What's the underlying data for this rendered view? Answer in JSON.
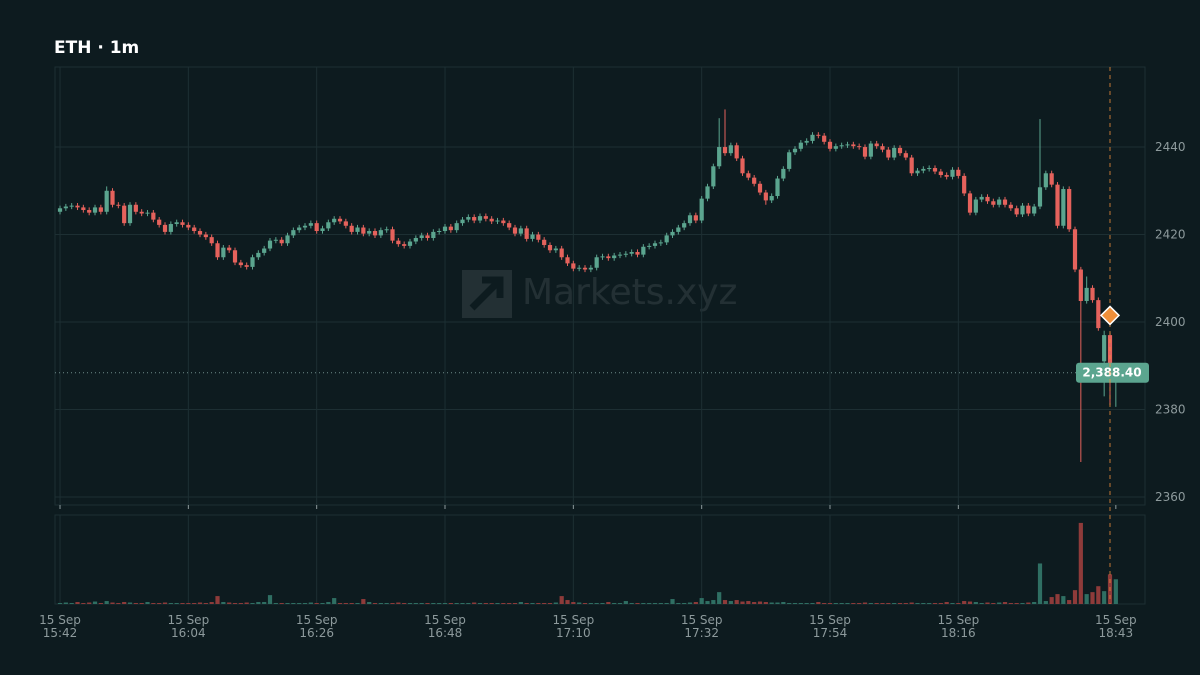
{
  "chart_data": {
    "type": "candlestick",
    "title": "ETH · 1m",
    "watermark": "Markets.xyz",
    "date_label": "15 Sep",
    "xlim": [
      -0.86,
      186
    ],
    "xticks": [
      {
        "value": 0,
        "label": "15:42"
      },
      {
        "value": 22,
        "label": "16:04"
      },
      {
        "value": 44,
        "label": "16:26"
      },
      {
        "value": 66,
        "label": "16:48"
      },
      {
        "value": 88,
        "label": "17:10"
      },
      {
        "value": 110,
        "label": "17:32"
      },
      {
        "value": 132,
        "label": "17:54"
      },
      {
        "value": 154,
        "label": "18:16"
      },
      {
        "value": 181,
        "label": "18:43"
      }
    ],
    "ylim": [
      2359.3,
      2458.3
    ],
    "yticks": [
      2360,
      2380,
      2400,
      2420,
      2440
    ],
    "volume_lim": [
      0,
      90
    ],
    "grid": true,
    "up_color": "#5ba58f",
    "down_color": "#e5625c",
    "up_volume_color": "#2f6f63",
    "down_volume_color": "#8e3b3a",
    "marker": {
      "x": 180,
      "y": 2401.5,
      "color": "#ef8f3a"
    },
    "last_price": {
      "value": 2388.4,
      "label": "2,388.40"
    },
    "open": [
      2425.2,
      2426.0,
      2426.4,
      2426.6,
      2426.2,
      2425.6,
      2425.0,
      2426.2,
      2425.2,
      2430.0,
      2426.8,
      2426.6,
      2422.6,
      2426.8,
      2425.2,
      2424.8,
      2425.0,
      2423.4,
      2422.2,
      2420.6,
      2422.4,
      2422.8,
      2422.2,
      2421.6,
      2420.8,
      2420.0,
      2419.4,
      2418.0,
      2414.8,
      2417.0,
      2416.4,
      2413.6,
      2413.0,
      2412.6,
      2414.8,
      2415.8,
      2416.8,
      2418.6,
      2418.8,
      2418.0,
      2419.8,
      2421.0,
      2421.6,
      2422.0,
      2422.6,
      2420.8,
      2421.4,
      2422.8,
      2423.6,
      2423.0,
      2422.0,
      2420.6,
      2421.6,
      2420.2,
      2420.8,
      2419.8,
      2421.0,
      2421.2,
      2418.6,
      2417.8,
      2417.4,
      2418.4,
      2419.2,
      2419.8,
      2419.2,
      2420.6,
      2420.8,
      2421.8,
      2421.0,
      2422.6,
      2423.4,
      2424.0,
      2423.2,
      2424.2,
      2423.6,
      2423.0,
      2423.2,
      2422.6,
      2421.6,
      2420.2,
      2421.4,
      2419.0,
      2420.0,
      2418.8,
      2417.6,
      2416.4,
      2416.8,
      2414.8,
      2413.4,
      2412.2,
      2412.4,
      2412.0,
      2412.4,
      2414.8,
      2415.0,
      2414.6,
      2415.2,
      2415.4,
      2415.6,
      2416.0,
      2415.4,
      2417.2,
      2417.4,
      2418.0,
      2418.2,
      2419.8,
      2420.6,
      2421.6,
      2422.6,
      2424.4,
      2423.2,
      2428.2,
      2431.0,
      2435.6,
      2440.0,
      2438.6,
      2440.4,
      2437.4,
      2434.0,
      2433.0,
      2431.6,
      2429.6,
      2427.8,
      2428.8,
      2432.8,
      2435.0,
      2438.8,
      2439.6,
      2441.0,
      2441.4,
      2442.8,
      2442.6,
      2441.2,
      2439.6,
      2440.2,
      2440.4,
      2440.6,
      2440.2,
      2440.0,
      2437.8,
      2440.8,
      2440.2,
      2439.4,
      2437.6,
      2439.8,
      2438.6,
      2437.6,
      2434.0,
      2434.6,
      2435.0,
      2435.2,
      2434.4,
      2433.6,
      2433.2,
      2434.8,
      2433.4,
      2429.4,
      2425.0,
      2428.0,
      2428.6,
      2427.6,
      2426.8,
      2428.0,
      2426.8,
      2426.0,
      2424.6,
      2426.6,
      2424.8,
      2426.4,
      2430.8,
      2434.0,
      2431.4,
      2422.0,
      2430.4,
      2421.2,
      2412.0,
      2404.8,
      2407.8,
      2405.0,
      2391.0,
      2397.0,
      2386.6
    ],
    "high": [
      2426.6,
      2427.0,
      2427.2,
      2427.2,
      2426.8,
      2426.2,
      2426.8,
      2426.8,
      2431.0,
      2430.6,
      2427.4,
      2427.2,
      2427.4,
      2427.4,
      2425.8,
      2425.6,
      2425.6,
      2424.0,
      2422.8,
      2423.0,
      2423.4,
      2423.4,
      2422.8,
      2422.2,
      2421.4,
      2420.6,
      2420.0,
      2418.6,
      2417.6,
      2417.6,
      2417.0,
      2414.2,
      2413.6,
      2415.4,
      2416.4,
      2417.4,
      2419.2,
      2419.4,
      2419.4,
      2420.4,
      2421.6,
      2422.2,
      2422.6,
      2423.2,
      2423.2,
      2422.0,
      2423.4,
      2424.2,
      2424.2,
      2423.6,
      2422.6,
      2422.2,
      2422.2,
      2421.4,
      2421.4,
      2421.6,
      2421.8,
      2421.8,
      2419.2,
      2418.4,
      2419.0,
      2419.8,
      2420.4,
      2420.4,
      2421.2,
      2421.4,
      2422.4,
      2422.4,
      2423.2,
      2424.0,
      2424.6,
      2424.6,
      2424.8,
      2424.8,
      2424.2,
      2423.8,
      2423.8,
      2423.2,
      2422.2,
      2422.0,
      2422.0,
      2420.6,
      2420.6,
      2419.4,
      2418.2,
      2417.4,
      2417.4,
      2415.4,
      2414.0,
      2413.0,
      2413.0,
      2413.0,
      2415.4,
      2415.6,
      2415.6,
      2415.8,
      2416.0,
      2416.2,
      2416.6,
      2416.6,
      2417.8,
      2418.0,
      2418.6,
      2418.8,
      2420.4,
      2421.2,
      2422.2,
      2423.2,
      2425.0,
      2425.0,
      2428.8,
      2431.6,
      2436.2,
      2446.6,
      2448.6,
      2441.0,
      2441.0,
      2438.0,
      2434.6,
      2433.6,
      2432.2,
      2430.2,
      2429.4,
      2433.4,
      2435.6,
      2439.4,
      2440.2,
      2441.6,
      2442.0,
      2443.4,
      2443.4,
      2443.2,
      2441.8,
      2440.8,
      2441.0,
      2441.2,
      2441.2,
      2440.8,
      2440.6,
      2441.4,
      2441.4,
      2440.8,
      2440.0,
      2440.4,
      2440.4,
      2439.2,
      2438.2,
      2435.2,
      2435.6,
      2435.8,
      2435.8,
      2435.0,
      2434.2,
      2435.4,
      2435.4,
      2434.0,
      2430.0,
      2428.6,
      2429.2,
      2429.2,
      2428.2,
      2428.6,
      2428.6,
      2427.4,
      2426.6,
      2427.2,
      2427.2,
      2427.0,
      2446.4,
      2434.6,
      2434.6,
      2432.0,
      2431.0,
      2431.0,
      2421.8,
      2412.6,
      2410.4,
      2408.4,
      2405.6,
      2398.0,
      2397.6,
      2390.6
    ],
    "low": [
      2424.6,
      2425.4,
      2425.8,
      2425.6,
      2425.0,
      2424.4,
      2424.4,
      2424.6,
      2424.6,
      2426.2,
      2426.0,
      2422.0,
      2422.0,
      2424.6,
      2424.2,
      2424.2,
      2422.8,
      2421.6,
      2420.0,
      2420.0,
      2421.8,
      2421.6,
      2421.0,
      2420.2,
      2419.4,
      2418.8,
      2417.4,
      2414.2,
      2414.2,
      2415.8,
      2413.0,
      2412.4,
      2412.0,
      2412.0,
      2414.2,
      2415.2,
      2416.2,
      2418.0,
      2417.4,
      2417.4,
      2419.2,
      2420.4,
      2421.0,
      2421.4,
      2420.2,
      2420.2,
      2420.8,
      2422.2,
      2422.4,
      2421.4,
      2420.0,
      2420.0,
      2419.6,
      2419.6,
      2419.2,
      2419.2,
      2420.4,
      2418.0,
      2417.2,
      2416.8,
      2416.8,
      2417.8,
      2418.6,
      2418.6,
      2418.6,
      2420.0,
      2420.2,
      2420.4,
      2420.4,
      2422.0,
      2422.8,
      2422.6,
      2422.6,
      2423.0,
      2422.4,
      2422.4,
      2422.0,
      2421.0,
      2419.6,
      2419.6,
      2418.4,
      2418.4,
      2418.2,
      2417.0,
      2415.8,
      2415.8,
      2414.2,
      2412.8,
      2411.6,
      2411.6,
      2411.4,
      2411.4,
      2411.8,
      2414.2,
      2414.0,
      2414.0,
      2414.6,
      2414.8,
      2415.0,
      2414.8,
      2414.8,
      2416.6,
      2416.8,
      2417.4,
      2417.6,
      2419.2,
      2420.0,
      2421.0,
      2422.0,
      2422.6,
      2422.6,
      2427.6,
      2430.4,
      2435.0,
      2438.0,
      2438.0,
      2436.8,
      2433.4,
      2432.4,
      2431.0,
      2429.0,
      2426.8,
      2427.2,
      2428.2,
      2432.2,
      2434.4,
      2438.2,
      2439.0,
      2440.4,
      2440.8,
      2442.0,
      2440.6,
      2439.0,
      2439.0,
      2439.6,
      2439.8,
      2439.6,
      2439.4,
      2437.2,
      2437.2,
      2439.6,
      2438.8,
      2437.0,
      2437.0,
      2438.0,
      2437.0,
      2433.4,
      2433.4,
      2434.0,
      2434.4,
      2433.8,
      2433.0,
      2432.6,
      2432.6,
      2432.8,
      2428.8,
      2424.4,
      2424.4,
      2427.4,
      2427.0,
      2426.2,
      2426.2,
      2426.2,
      2425.4,
      2424.0,
      2424.0,
      2424.2,
      2424.2,
      2425.8,
      2430.2,
      2430.8,
      2421.4,
      2421.4,
      2420.6,
      2411.4,
      2368.0,
      2404.2,
      2404.4,
      2398.0,
      2383.0,
      2381.0,
      2380.6
    ],
    "close": [
      2426.0,
      2426.4,
      2426.6,
      2426.2,
      2425.6,
      2425.0,
      2426.2,
      2425.2,
      2430.0,
      2426.8,
      2426.6,
      2422.6,
      2426.8,
      2425.2,
      2424.8,
      2425.0,
      2423.4,
      2422.2,
      2420.6,
      2422.4,
      2422.8,
      2422.2,
      2421.6,
      2420.8,
      2420.0,
      2419.4,
      2418.0,
      2414.8,
      2417.0,
      2416.4,
      2413.6,
      2413.0,
      2412.6,
      2414.8,
      2415.8,
      2416.8,
      2418.6,
      2418.8,
      2418.0,
      2419.8,
      2421.0,
      2421.6,
      2422.0,
      2422.6,
      2420.8,
      2421.4,
      2422.8,
      2423.6,
      2423.0,
      2422.0,
      2420.6,
      2421.6,
      2420.2,
      2420.8,
      2419.8,
      2421.0,
      2421.2,
      2418.6,
      2417.8,
      2417.4,
      2418.4,
      2419.2,
      2419.8,
      2419.2,
      2420.6,
      2420.8,
      2421.8,
      2421.0,
      2422.6,
      2423.4,
      2424.0,
      2423.2,
      2424.2,
      2423.6,
      2423.0,
      2423.2,
      2422.6,
      2421.6,
      2420.2,
      2421.4,
      2419.0,
      2420.0,
      2418.8,
      2417.6,
      2416.4,
      2416.8,
      2414.8,
      2413.4,
      2412.2,
      2412.4,
      2412.0,
      2412.4,
      2414.8,
      2415.0,
      2414.6,
      2415.2,
      2415.4,
      2415.6,
      2416.0,
      2415.4,
      2417.2,
      2417.4,
      2418.0,
      2418.2,
      2419.8,
      2420.6,
      2421.6,
      2422.6,
      2424.4,
      2423.2,
      2428.2,
      2431.0,
      2435.6,
      2440.0,
      2438.6,
      2440.4,
      2437.4,
      2434.0,
      2433.0,
      2431.6,
      2429.6,
      2427.8,
      2428.8,
      2432.8,
      2435.0,
      2438.8,
      2439.6,
      2441.0,
      2441.4,
      2442.8,
      2442.6,
      2441.2,
      2439.6,
      2440.2,
      2440.4,
      2440.6,
      2440.2,
      2440.0,
      2437.8,
      2440.8,
      2440.2,
      2439.4,
      2437.6,
      2439.8,
      2438.6,
      2437.6,
      2434.0,
      2434.6,
      2435.0,
      2435.2,
      2434.4,
      2433.6,
      2433.2,
      2434.8,
      2433.4,
      2429.4,
      2425.0,
      2428.0,
      2428.6,
      2427.6,
      2426.8,
      2428.0,
      2426.8,
      2426.0,
      2424.6,
      2426.6,
      2424.8,
      2426.4,
      2430.8,
      2434.0,
      2431.4,
      2422.0,
      2430.4,
      2421.2,
      2412.0,
      2404.8,
      2407.8,
      2405.0,
      2398.6,
      2397.0,
      2388.4,
      2388.4
    ],
    "volume": [
      1,
      1.5,
      1,
      2,
      1,
      1.5,
      2.5,
      1,
      3,
      1.5,
      1,
      2,
      1.5,
      1,
      1,
      2,
      1,
      1,
      1.5,
      1,
      1,
      1,
      1,
      1,
      1.5,
      1,
      2,
      8,
      2,
      1.5,
      1,
      1,
      1.5,
      1,
      2,
      2,
      9,
      1,
      1,
      1,
      1,
      1,
      1,
      1.5,
      1,
      1,
      2,
      6,
      1,
      1,
      1,
      1,
      5,
      2,
      1,
      1,
      1,
      1,
      1.5,
      1,
      1,
      1,
      1,
      1,
      1,
      1,
      1,
      1,
      1,
      1,
      1,
      1.5,
      1,
      1,
      1,
      1,
      1,
      1,
      1,
      2,
      1,
      1,
      1,
      1,
      1,
      1.5,
      8,
      4,
      2,
      1.5,
      1,
      1,
      1,
      1,
      2,
      1,
      1,
      3,
      1,
      1,
      1,
      1,
      1,
      1,
      1,
      5,
      1,
      1,
      1.5,
      2,
      6,
      3,
      4,
      12,
      4,
      3,
      4,
      2.5,
      3,
      2,
      2.5,
      2,
      1.5,
      1.5,
      2,
      1,
      1,
      1,
      1,
      1,
      2,
      1,
      1,
      1,
      1,
      1,
      1,
      1,
      1.5,
      1,
      1,
      1,
      1,
      1,
      1,
      1,
      1.5,
      1,
      1,
      1,
      1,
      1,
      2,
      1,
      1,
      3,
      2.5,
      2,
      1,
      1.5,
      1,
      1.5,
      2,
      1,
      1,
      1,
      1.5,
      2,
      41,
      3,
      7,
      10,
      8,
      4,
      14,
      82,
      10,
      12,
      18,
      13,
      30,
      25
    ]
  }
}
